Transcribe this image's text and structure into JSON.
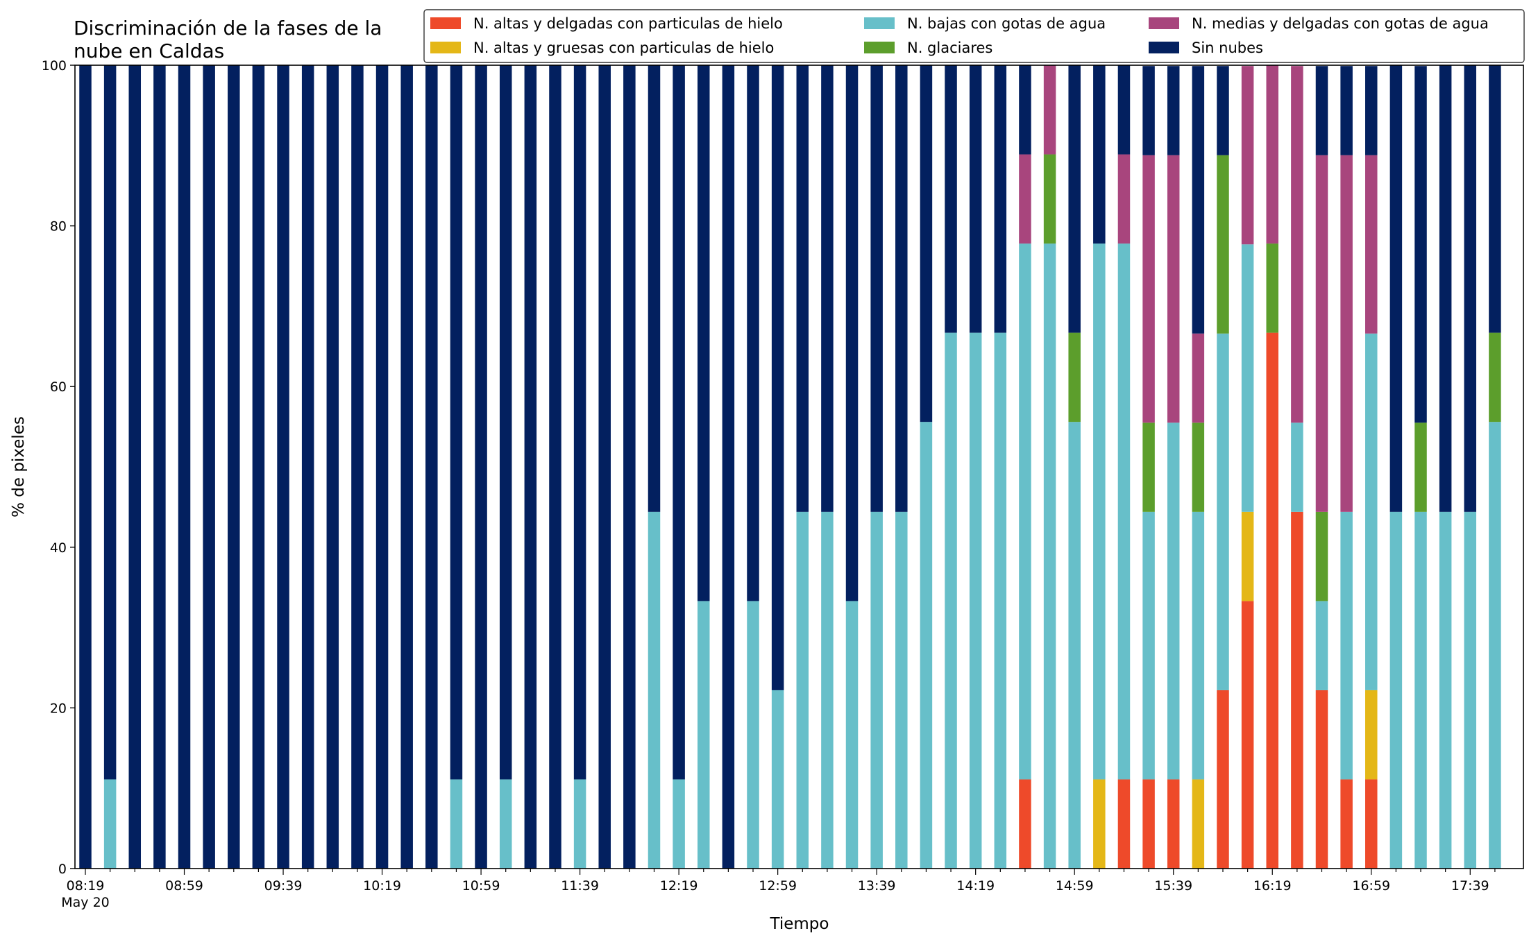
{
  "chart_data": {
    "type": "bar",
    "stacked": true,
    "title_lines": [
      "Discriminación de la fases de la",
      "nube en Caldas"
    ],
    "xlabel": "Tiempo",
    "ylabel": "% de pixeles",
    "ylim": [
      0,
      100
    ],
    "yticks": [
      0,
      20,
      40,
      60,
      80,
      100
    ],
    "grid": false,
    "legend_position": "top-right",
    "x_tick_labels": [
      "08:19",
      "08:59",
      "09:39",
      "10:19",
      "10:59",
      "11:39",
      "12:19",
      "12:59",
      "13:39",
      "14:19",
      "14:59",
      "15:39",
      "16:19",
      "16:59",
      "17:39"
    ],
    "x_tick_sublabel": "May 20",
    "x_tick_every": 4,
    "bar_count": 58,
    "series": [
      {
        "name": "N. altas y delgadas con particulas de hielo",
        "color": "#ee4a2a",
        "values": [
          0,
          0,
          0,
          0,
          0,
          0,
          0,
          0,
          0,
          0,
          0,
          0,
          0,
          0,
          0,
          0,
          0,
          0,
          0,
          0,
          0,
          0,
          0,
          0,
          0,
          0,
          0,
          0,
          0,
          0,
          0,
          0,
          0,
          0,
          0,
          0,
          0,
          0,
          11.1,
          0,
          0,
          0,
          11.1,
          11.1,
          11.1,
          0,
          22.2,
          33.3,
          66.7,
          44.4,
          22.2,
          11.1,
          11.1,
          0,
          0,
          0,
          0,
          0
        ]
      },
      {
        "name": "N. altas y gruesas con particulas de hielo",
        "color": "#e4b717",
        "values": [
          0,
          0,
          0,
          0,
          0,
          0,
          0,
          0,
          0,
          0,
          0,
          0,
          0,
          0,
          0,
          0,
          0,
          0,
          0,
          0,
          0,
          0,
          0,
          0,
          0,
          0,
          0,
          0,
          0,
          0,
          0,
          0,
          0,
          0,
          0,
          0,
          0,
          0,
          0,
          0,
          0,
          11.1,
          0,
          0,
          0,
          11.1,
          0,
          11.1,
          0,
          0,
          0,
          0,
          11.1,
          0,
          0,
          0,
          0,
          0
        ]
      },
      {
        "name": "N. bajas con gotas de agua",
        "color": "#67bfc9",
        "values": [
          0,
          11.1,
          0,
          0,
          0,
          0,
          0,
          0,
          0,
          0,
          0,
          0,
          0,
          0,
          0,
          11.1,
          0,
          11.1,
          0,
          0,
          11.1,
          0,
          0,
          44.4,
          11.1,
          33.3,
          0,
          33.3,
          22.2,
          44.4,
          44.4,
          33.3,
          44.4,
          44.4,
          55.6,
          66.7,
          66.7,
          66.7,
          66.7,
          77.8,
          55.6,
          66.7,
          66.7,
          33.3,
          44.4,
          33.3,
          44.4,
          33.3,
          0,
          11.1,
          11.1,
          33.3,
          44.4,
          44.4,
          44.4,
          44.4,
          44.4,
          55.6
        ]
      },
      {
        "name": "N. glaciares",
        "color": "#5c9e2c",
        "values": [
          0,
          0,
          0,
          0,
          0,
          0,
          0,
          0,
          0,
          0,
          0,
          0,
          0,
          0,
          0,
          0,
          0,
          0,
          0,
          0,
          0,
          0,
          0,
          0,
          0,
          0,
          0,
          0,
          0,
          0,
          0,
          0,
          0,
          0,
          0,
          0,
          0,
          0,
          0,
          11.1,
          11.1,
          0,
          0,
          11.1,
          0,
          11.1,
          22.2,
          0,
          11.1,
          0,
          11.1,
          0,
          0,
          0,
          11.1,
          0,
          0,
          11.1
        ]
      },
      {
        "name": "N. medias y delgadas con gotas de agua",
        "color": "#a8457d",
        "values": [
          0,
          0,
          0,
          0,
          0,
          0,
          0,
          0,
          0,
          0,
          0,
          0,
          0,
          0,
          0,
          0,
          0,
          0,
          0,
          0,
          0,
          0,
          0,
          0,
          0,
          0,
          0,
          0,
          0,
          0,
          0,
          0,
          0,
          0,
          0,
          0,
          0,
          0,
          11.1,
          11.1,
          0,
          0,
          11.1,
          33.3,
          33.3,
          11.1,
          0,
          22.2,
          22.2,
          44.4,
          44.4,
          44.4,
          22.2,
          0,
          0,
          0,
          0,
          0
        ]
      },
      {
        "name": "Sin nubes",
        "color": "#03205f",
        "values": [
          100,
          88.9,
          100,
          100,
          100,
          100,
          100,
          100,
          100,
          100,
          100,
          100,
          100,
          100,
          100,
          88.9,
          100,
          88.9,
          100,
          100,
          88.9,
          100,
          100,
          55.6,
          88.9,
          66.7,
          100,
          66.7,
          77.8,
          55.6,
          55.6,
          66.7,
          55.6,
          55.6,
          44.4,
          33.3,
          33.3,
          33.3,
          11.1,
          0,
          33.3,
          22.2,
          11.1,
          11.1,
          11.1,
          33.3,
          11.1,
          0,
          0,
          0,
          11.1,
          11.1,
          11.1,
          55.6,
          44.4,
          55.6,
          55.6,
          33.3
        ]
      }
    ]
  }
}
